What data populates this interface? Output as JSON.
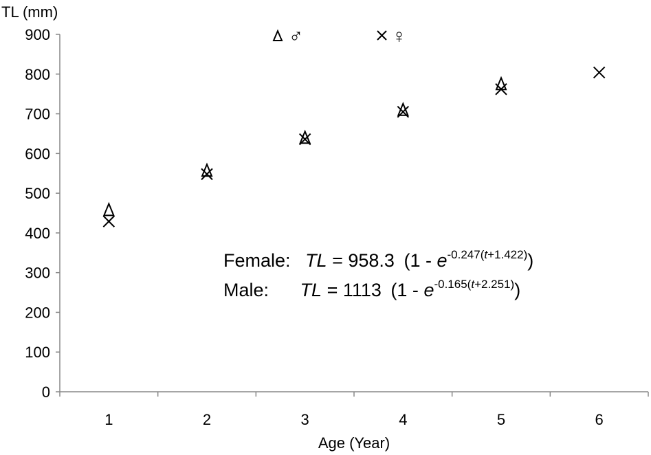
{
  "chart_data": {
    "type": "scatter",
    "title": "",
    "xlabel": "Age (Year)",
    "ylabel": "TL (mm)",
    "categories": [
      "1",
      "2",
      "3",
      "4",
      "5",
      "6"
    ],
    "ylim": [
      0,
      900
    ],
    "yticks": [
      "0",
      "100",
      "200",
      "300",
      "400",
      "500",
      "600",
      "700",
      "800",
      "900"
    ],
    "grid": false,
    "legend_position": "top-center",
    "series": [
      {
        "name": "♂",
        "marker": "triangle",
        "x": [
          1,
          2,
          3,
          4,
          5
        ],
        "values": [
          458,
          557,
          640,
          710,
          775
        ]
      },
      {
        "name": "♀",
        "marker": "x",
        "x": [
          1,
          2,
          3,
          4,
          5,
          6
        ],
        "values": [
          429,
          548,
          636,
          705,
          762,
          804
        ]
      }
    ],
    "annotations": {
      "female_label": "Female:",
      "female_lhs": "TL",
      "female_eq": "= 958.3",
      "female_paren_open": "(1 - ",
      "female_e": "e",
      "female_exp_a": "-0.247(",
      "female_exp_t": "t",
      "female_exp_b": "+1.422)",
      "female_paren_close": ")",
      "male_label": "Male:",
      "male_lhs": "TL",
      "male_eq": "= 1113",
      "male_paren_open": "(1 - ",
      "male_e": "e",
      "male_exp_a": "-0.165(",
      "male_exp_t": "t",
      "male_exp_b": "+2.251)",
      "male_paren_close": ")"
    },
    "legend_symbols": {
      "male_marker": "Δ",
      "female_marker": "×"
    }
  }
}
